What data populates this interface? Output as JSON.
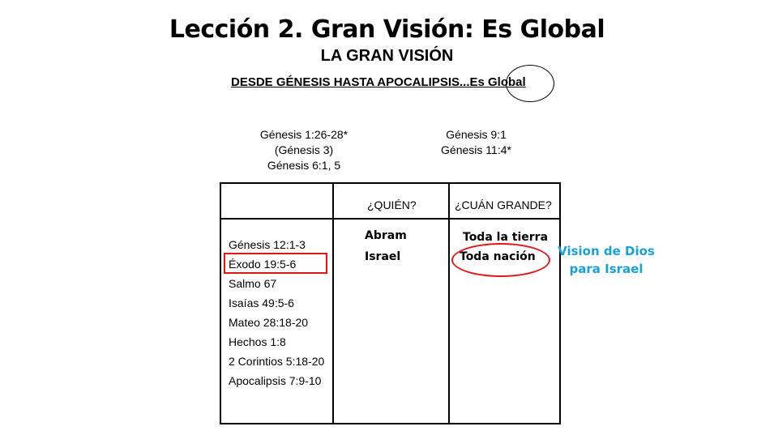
{
  "slide": {
    "title": "Lección 2. Gran Visión: Es Global",
    "subtitle": "LA GRAN VISIÓN",
    "heading_prefix": "DESDE GÉNESIS HASTA APOCALIPSIS...Es ",
    "heading_highlight": "Global"
  },
  "refs_left": [
    "Génesis 1:26-28*",
    "(Génesis 3)",
    "Génesis 6:1, 5"
  ],
  "refs_right": [
    "Génesis 9:1",
    "Génesis 11:4*"
  ],
  "table": {
    "headers": [
      "",
      "¿QUIÉN?",
      "¿CUÁN GRANDE?"
    ],
    "passages": [
      "Génesis 12:1-3",
      "Éxodo 19:5-6",
      "Salmo 67",
      "Isaías 49:5-6",
      "Mateo 28:18-20",
      "Hechos 1:8",
      "2 Corintios 5:18-20",
      "Apocalipsis 7:9-10"
    ],
    "quien": [
      "Abram",
      "Israel"
    ],
    "cuan_grande": [
      "Toda la tierra",
      "Toda nación"
    ]
  },
  "annotation": {
    "line1": "Vision de Dios",
    "line2": "para Israel",
    "color": "#1aa0d8",
    "highlight_color": "#e01818"
  }
}
